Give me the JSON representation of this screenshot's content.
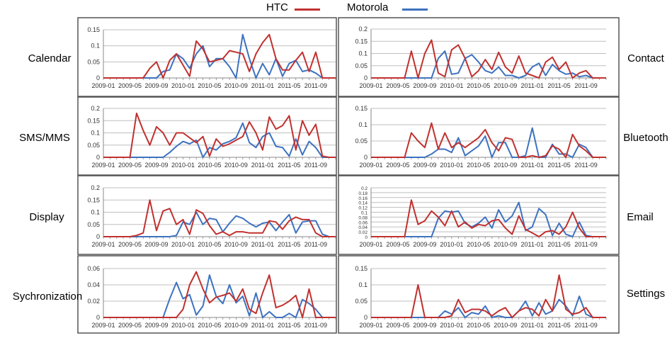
{
  "legend": [
    {
      "name": "HTC",
      "color": "#c0312f"
    },
    {
      "name": "Motorola",
      "color": "#3d72c0"
    }
  ],
  "x_ticks": [
    "2009-01",
    "2009-05",
    "2009-09",
    "2010-01",
    "2010-05",
    "2010-09",
    "2011-01",
    "2011-05",
    "2011-09"
  ],
  "chart_data": [
    {
      "type": "line",
      "label": "Calendar",
      "ylim": [
        0,
        0.15
      ],
      "yticks": [
        "0",
        "0.05",
        "0.1",
        "0.15"
      ],
      "series": [
        {
          "name": "HTC",
          "values": [
            0,
            0,
            0,
            0,
            0,
            0,
            0,
            0.03,
            0.05,
            0,
            0.055,
            0.075,
            0.04,
            0.005,
            0.115,
            0.09,
            0.05,
            0.055,
            0.06,
            0.085,
            0.08,
            0.075,
            0.02,
            0.075,
            0.11,
            0.135,
            0.06,
            0.025,
            0.025,
            0.055,
            0.08,
            0.02,
            0.08,
            0,
            0,
            0
          ]
        },
        {
          "name": "Motorola",
          "values": [
            0,
            0,
            0,
            0,
            0,
            0,
            0,
            0,
            0,
            0.02,
            0.025,
            0.075,
            0.06,
            0.03,
            0.075,
            0.1,
            0.035,
            0.06,
            0.06,
            0.035,
            0,
            0.135,
            0.06,
            0,
            0.045,
            0.01,
            0.06,
            0.005,
            0.045,
            0.055,
            0.02,
            0.025,
            0.015,
            0,
            0,
            0
          ]
        }
      ]
    },
    {
      "type": "line",
      "label": "Contact",
      "ylim": [
        0,
        0.2
      ],
      "yticks": [
        "0",
        "0.05",
        "0.1",
        "0.15",
        "0.2"
      ],
      "series": [
        {
          "name": "HTC",
          "values": [
            0,
            0,
            0,
            0,
            0,
            0,
            0.11,
            0,
            0.1,
            0.155,
            0.02,
            0.005,
            0.115,
            0.135,
            0.08,
            0.005,
            0.03,
            0.075,
            0.035,
            0.105,
            0.045,
            0.02,
            0.09,
            0.02,
            0.01,
            0,
            0.065,
            0.085,
            0.035,
            0.065,
            0,
            0.02,
            0.03,
            0,
            0,
            0
          ]
        },
        {
          "name": "Motorola",
          "values": [
            0,
            0,
            0,
            0,
            0,
            0,
            0,
            0,
            0,
            0,
            0.08,
            0.11,
            0.015,
            0.02,
            0.08,
            0.095,
            0.065,
            0.03,
            0.02,
            0.045,
            0.01,
            0.01,
            0,
            0.01,
            0.045,
            0.06,
            0.01,
            0.055,
            0.03,
            0.015,
            0.02,
            0.005,
            0.01,
            0,
            0,
            0
          ]
        }
      ]
    },
    {
      "type": "line",
      "label": "SMS/MMS",
      "ylim": [
        0,
        0.2
      ],
      "yticks": [
        "0",
        "0.05",
        "0.1",
        "0.15",
        "0.2"
      ],
      "series": [
        {
          "name": "HTC",
          "values": [
            0,
            0,
            0,
            0,
            0,
            0.18,
            0.11,
            0.05,
            0.125,
            0.1,
            0.05,
            0.1,
            0.1,
            0.08,
            0.06,
            0.085,
            0.005,
            0.075,
            0.045,
            0.055,
            0.07,
            0.085,
            0.145,
            0.1,
            0.03,
            0.165,
            0.115,
            0.13,
            0.17,
            0.03,
            0.15,
            0.09,
            0.135,
            0.005,
            0,
            0
          ]
        },
        {
          "name": "Motorola",
          "values": [
            0,
            0,
            0,
            0,
            0,
            0,
            0,
            0,
            0,
            0,
            0.02,
            0.045,
            0.065,
            0.055,
            0.07,
            0,
            0.04,
            0.03,
            0.055,
            0.065,
            0.08,
            0.14,
            0.06,
            0.04,
            0.085,
            0.1,
            0.045,
            0.04,
            0.005,
            0.075,
            0.01,
            0.065,
            0.04,
            0,
            0,
            0
          ]
        }
      ]
    },
    {
      "type": "line",
      "label": "Bluetooth",
      "ylim": [
        0,
        0.15
      ],
      "yticks": [
        "0",
        "0.05",
        "0.1",
        "0.15"
      ],
      "series": [
        {
          "name": "HTC",
          "values": [
            0,
            0,
            0,
            0,
            0,
            0,
            0.075,
            0.05,
            0.03,
            0.105,
            0.025,
            0.075,
            0.03,
            0.045,
            0.03,
            0.045,
            0.06,
            0.085,
            0.045,
            0.02,
            0.06,
            0.055,
            0,
            0,
            0.005,
            0,
            0.005,
            0.035,
            0.025,
            0,
            0.07,
            0.035,
            0.02,
            0,
            0,
            0
          ]
        },
        {
          "name": "Motorola",
          "values": [
            0,
            0,
            0,
            0,
            0,
            0,
            0,
            0,
            0,
            0.01,
            0.025,
            0.025,
            0.015,
            0.06,
            0.005,
            0.02,
            0.035,
            0.065,
            0,
            0.045,
            0.045,
            0,
            0,
            0.005,
            0.09,
            0,
            0,
            0.04,
            0.01,
            0.01,
            0,
            0.04,
            0.03,
            0,
            0,
            0
          ]
        }
      ]
    },
    {
      "type": "line",
      "label": "Display",
      "ylim": [
        0,
        0.2
      ],
      "yticks": [
        "0",
        "0.05",
        "0.1",
        "0.15",
        "0.2"
      ],
      "series": [
        {
          "name": "HTC",
          "values": [
            0,
            0,
            0,
            0,
            0,
            0.005,
            0.015,
            0.15,
            0.025,
            0.105,
            0.115,
            0.05,
            0.07,
            0.01,
            0.11,
            0.095,
            0.045,
            0.01,
            0.02,
            0.005,
            0.02,
            0.02,
            0.015,
            0.015,
            0.015,
            0.065,
            0.06,
            0.03,
            0.065,
            0.08,
            0.07,
            0.07,
            0.015,
            0,
            0,
            0
          ]
        },
        {
          "name": "Motorola",
          "values": [
            0,
            0,
            0,
            0,
            0,
            0,
            0,
            0,
            0,
            0,
            0,
            0.005,
            0.06,
            0.05,
            0.1,
            0.05,
            0.075,
            0.07,
            0.02,
            0.055,
            0.085,
            0.075,
            0.055,
            0.04,
            0.055,
            0.06,
            0.025,
            0.06,
            0.09,
            0.015,
            0.06,
            0.065,
            0.065,
            0.01,
            0,
            0
          ]
        }
      ]
    },
    {
      "type": "line",
      "label": "Email",
      "ylim": [
        0,
        0.2
      ],
      "yticks": [
        "0",
        "0.02",
        "0.04",
        "0.06",
        "0.08",
        "0.1",
        "0.12",
        "0.14",
        "0.16",
        "0.18",
        "0.2"
      ],
      "series": [
        {
          "name": "HTC",
          "values": [
            0,
            0,
            0,
            0,
            0,
            0,
            0.15,
            0.05,
            0.065,
            0.105,
            0.08,
            0.045,
            0.105,
            0.04,
            0.06,
            0.035,
            0.05,
            0.045,
            0.065,
            0.07,
            0.035,
            0.01,
            0.085,
            0.03,
            0.015,
            0,
            0.02,
            0.025,
            0.01,
            0.04,
            0.1,
            0.035,
            0,
            0,
            0,
            0
          ]
        },
        {
          "name": "Motorola",
          "values": [
            0,
            0,
            0,
            0,
            0,
            0,
            0,
            0,
            0,
            0,
            0.075,
            0.105,
            0.1,
            0.105,
            0.055,
            0.04,
            0.055,
            0.08,
            0.035,
            0.11,
            0.06,
            0.085,
            0.14,
            0.025,
            0.04,
            0.115,
            0.09,
            0.005,
            0.055,
            0.01,
            0,
            0.06,
            0.005,
            0,
            0,
            0
          ]
        }
      ]
    },
    {
      "type": "line",
      "label": "Sychronization",
      "ylim": [
        0,
        0.06
      ],
      "yticks": [
        "0",
        "0.02",
        "0.04",
        "0.06"
      ],
      "series": [
        {
          "name": "HTC",
          "values": [
            0,
            0,
            0,
            0,
            0,
            0,
            0,
            0,
            0,
            0,
            0,
            0,
            0.01,
            0.04,
            0.056,
            0.035,
            0.018,
            0.025,
            0.027,
            0.03,
            0.02,
            0.035,
            0.01,
            0.005,
            0.03,
            0.052,
            0.012,
            0.015,
            0.02,
            0.027,
            0,
            0.035,
            0,
            0,
            0,
            0
          ]
        },
        {
          "name": "Motorola",
          "values": [
            0,
            0,
            0,
            0,
            0,
            0,
            0,
            0,
            0,
            0,
            0.023,
            0.043,
            0.023,
            0.028,
            0.003,
            0.014,
            0.052,
            0.026,
            0.017,
            0.04,
            0.018,
            0.026,
            0.002,
            0.03,
            0,
            0.007,
            0,
            0,
            0.005,
            0,
            0.022,
            0.017,
            0.01,
            0,
            0,
            0
          ]
        }
      ]
    },
    {
      "type": "line",
      "label": "Settings",
      "ylim": [
        0,
        0.15
      ],
      "yticks": [
        "0",
        "0.05",
        "0.1",
        "0.15"
      ],
      "series": [
        {
          "name": "HTC",
          "values": [
            0,
            0,
            0,
            0,
            0,
            0,
            0,
            0.1,
            0,
            0,
            0,
            0,
            0.005,
            0.055,
            0.015,
            0.025,
            0.025,
            0.02,
            0.005,
            0.02,
            0.03,
            0,
            0.02,
            0.03,
            0.025,
            0.005,
            0.055,
            0.02,
            0.13,
            0.025,
            0.01,
            0.015,
            0.03,
            0,
            0,
            0
          ]
        },
        {
          "name": "Motorola",
          "values": [
            0,
            0,
            0,
            0,
            0,
            0,
            0,
            0,
            0,
            0,
            0,
            0.02,
            0.01,
            0.03,
            0,
            0.015,
            0.01,
            0.035,
            0,
            0.005,
            0,
            0,
            0.02,
            0.05,
            0.005,
            0.045,
            0.01,
            0.02,
            0.055,
            0.035,
            0.005,
            0.065,
            0.01,
            0,
            0,
            0
          ]
        }
      ]
    }
  ]
}
